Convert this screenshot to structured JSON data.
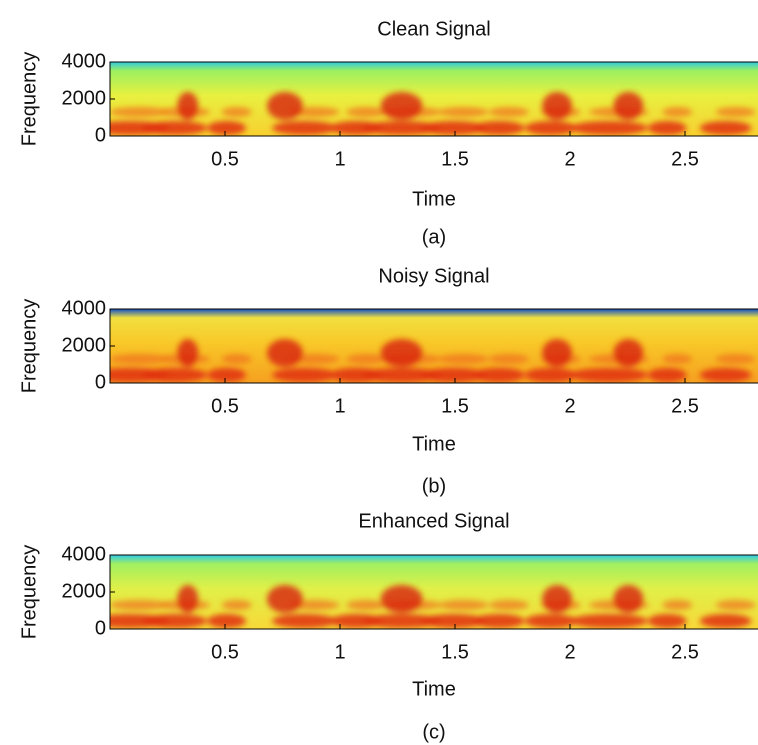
{
  "chart_data": [
    {
      "type": "heatmap",
      "colormap": "jet",
      "title": "Clean Signal",
      "x_label": "Time",
      "caption": "(a)",
      "y_label": "Frequency",
      "xlim": [
        0,
        2.8
      ],
      "xticks": [
        0.5,
        1,
        1.5,
        2,
        2.5
      ],
      "ylim": [
        0,
        4000
      ],
      "yticks": [
        0,
        2000,
        4000
      ]
    },
    {
      "type": "heatmap",
      "colormap": "jet",
      "title": "Noisy Signal",
      "x_label": "Time",
      "caption": "(b)",
      "y_label": "Frequency",
      "xlim": [
        0,
        2.8
      ],
      "xticks": [
        0.5,
        1,
        1.5,
        2,
        2.5
      ],
      "ylim": [
        0,
        4000
      ],
      "yticks": [
        0,
        2000,
        4000
      ]
    },
    {
      "type": "heatmap",
      "colormap": "jet",
      "title": "Enhanced Signal",
      "x_label": "Time",
      "caption": "(c)",
      "y_label": "Frequency",
      "xlim": [
        0,
        2.8
      ],
      "xticks": [
        0.5,
        1,
        1.5,
        2,
        2.5
      ],
      "ylim": [
        0,
        4000
      ],
      "yticks": [
        0,
        2000,
        4000
      ]
    }
  ]
}
